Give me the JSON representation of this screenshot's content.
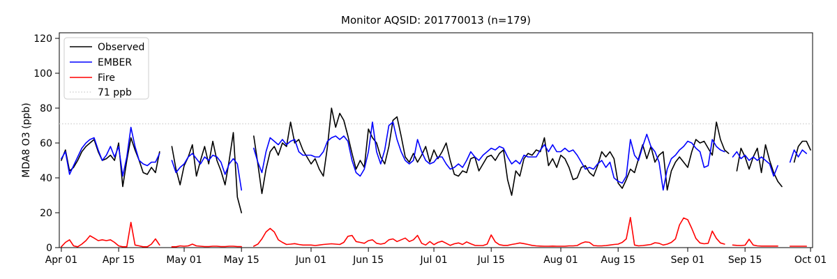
{
  "title": "Monitor AQSID: 201770013 (n=179)",
  "axes": {
    "ylabel": "MDA8 O3 (ppb)",
    "y_ticks": [
      0,
      20,
      40,
      60,
      80,
      100,
      120
    ],
    "ylim": [
      0,
      123.2
    ],
    "x_range_days": 184,
    "x_ticks": [
      {
        "label": "Apr 01",
        "day": 0
      },
      {
        "label": "Apr 15",
        "day": 14
      },
      {
        "label": "May 01",
        "day": 30
      },
      {
        "label": "May 15",
        "day": 44
      },
      {
        "label": "Jun 01",
        "day": 61
      },
      {
        "label": "Jun 15",
        "day": 75
      },
      {
        "label": "Jul 01",
        "day": 91
      },
      {
        "label": "Jul 15",
        "day": 105
      },
      {
        "label": "Aug 01",
        "day": 122
      },
      {
        "label": "Aug 15",
        "day": 136
      },
      {
        "label": "Sep 01",
        "day": 153
      },
      {
        "label": "Sep 15",
        "day": 167
      },
      {
        "label": "Oct 01",
        "day": 183
      }
    ]
  },
  "threshold_ppb": 71,
  "legend": {
    "items": [
      {
        "key": "observed",
        "label": "Observed",
        "color": "#000000",
        "style": "solid"
      },
      {
        "key": "ember",
        "label": "EMBER",
        "color": "#0000ff",
        "style": "solid"
      },
      {
        "key": "fire",
        "label": "Fire",
        "color": "#ff0000",
        "style": "solid"
      },
      {
        "key": "threshold",
        "label": "71 ppb",
        "color": "#d3d3d3",
        "style": "dotted"
      }
    ]
  },
  "chart_data": {
    "type": "line",
    "title": "Monitor AQSID: 201770013 (n=179)",
    "xlabel": "",
    "ylabel": "MDA8 O3 (ppb)",
    "x_unit": "day index from Apr 01 (null = missing day)",
    "x_start_date": "Apr 01",
    "x_end_date": "Sep 30",
    "grid": false,
    "legend_position": "upper left",
    "threshold_line": {
      "value": 71,
      "label": "71 ppb",
      "color": "#d3d3d3",
      "style": "dotted"
    },
    "series": [
      {
        "key": "observed",
        "name": "Observed",
        "color": "#000000",
        "values": [
          50,
          56,
          44,
          46,
          50,
          55,
          58,
          60,
          62,
          55,
          50,
          51,
          53,
          50,
          60,
          35,
          50,
          63,
          56,
          50,
          43,
          42,
          46,
          43,
          55,
          null,
          null,
          58,
          45,
          36,
          47,
          52,
          59,
          41,
          50,
          58,
          48,
          61,
          50,
          44,
          36,
          50,
          66,
          29,
          20,
          null,
          null,
          64,
          48,
          31,
          45,
          55,
          58,
          53,
          60,
          58,
          72,
          60,
          62,
          56,
          52,
          48,
          51,
          45,
          41,
          58,
          80,
          69,
          77,
          73,
          64,
          54,
          45,
          50,
          46,
          68,
          63,
          60,
          52,
          48,
          58,
          73,
          75,
          64,
          52,
          49,
          54,
          49,
          53,
          58,
          49,
          56,
          51,
          55,
          60,
          50,
          42,
          41,
          44,
          43,
          51,
          52,
          44,
          48,
          52,
          53,
          50,
          54,
          56,
          39,
          30,
          44,
          41,
          51,
          54,
          53,
          56,
          55,
          63,
          47,
          51,
          46,
          53,
          51,
          46,
          39,
          40,
          46,
          47,
          43,
          41,
          47,
          55,
          52,
          55,
          51,
          37,
          34,
          39,
          45,
          43,
          51,
          59,
          51,
          58,
          49,
          53,
          55,
          33,
          44,
          49,
          52,
          49,
          46,
          55,
          62,
          60,
          61,
          57,
          53,
          72,
          62,
          56,
          54,
          null,
          44,
          57,
          52,
          45,
          52,
          57,
          43,
          59,
          50,
          43,
          38,
          35,
          null,
          null,
          49,
          58,
          61,
          61,
          56
        ]
      },
      {
        "key": "ember",
        "name": "EMBER",
        "color": "#0000ff",
        "values": [
          51,
          55,
          42,
          47,
          52,
          57,
          60,
          62,
          63,
          56,
          50,
          53,
          58,
          52,
          58,
          41,
          52,
          69,
          58,
          50,
          48,
          47,
          49,
          49,
          54,
          null,
          null,
          50,
          43,
          46,
          48,
          52,
          54,
          51,
          48,
          52,
          50,
          53,
          52,
          49,
          42,
          48,
          51,
          48,
          33,
          null,
          null,
          57,
          49,
          43,
          55,
          63,
          61,
          59,
          62,
          59,
          61,
          62,
          55,
          53,
          53,
          53,
          52,
          52,
          55,
          61,
          63,
          64,
          62,
          64,
          61,
          50,
          43,
          41,
          45,
          55,
          72,
          55,
          48,
          56,
          70,
          72,
          62,
          55,
          50,
          48,
          50,
          62,
          55,
          50,
          48,
          49,
          52,
          52,
          48,
          45,
          46,
          48,
          46,
          50,
          55,
          52,
          50,
          53,
          55,
          57,
          56,
          58,
          57,
          52,
          48,
          50,
          48,
          53,
          52,
          52,
          52,
          56,
          59,
          55,
          59,
          55,
          55,
          57,
          55,
          56,
          53,
          49,
          45,
          46,
          45,
          48,
          50,
          46,
          49,
          40,
          38,
          37,
          41,
          62,
          53,
          50,
          58,
          65,
          58,
          55,
          49,
          33,
          45,
          51,
          53,
          56,
          58,
          61,
          60,
          57,
          55,
          46,
          47,
          62,
          58,
          56,
          55,
          null,
          52,
          55,
          51,
          53,
          50,
          52,
          50,
          52,
          50,
          48,
          41,
          47,
          null,
          null,
          49,
          56,
          52,
          56,
          54
        ]
      },
      {
        "key": "fire",
        "name": "Fire",
        "color": "#ff0000",
        "values": [
          0.5,
          3,
          4.5,
          1,
          0.5,
          2,
          4,
          6.8,
          5.5,
          4,
          4.5,
          4,
          4.5,
          3,
          1,
          0.5,
          0.5,
          14.5,
          1.5,
          1,
          0.5,
          0.5,
          2,
          5,
          1.5,
          null,
          null,
          0.5,
          0.5,
          1,
          0.8,
          1,
          2,
          1,
          0.8,
          0.6,
          0.6,
          0.8,
          0.8,
          0.6,
          0.6,
          0.8,
          0.8,
          0.6,
          0.6,
          null,
          null,
          0.8,
          2,
          5,
          9,
          11,
          9,
          4.5,
          3,
          1.8,
          2,
          2.3,
          1.8,
          1.5,
          1.5,
          1.5,
          1.2,
          1.5,
          1.8,
          2,
          2.2,
          2,
          1.8,
          3,
          6.5,
          7,
          3.5,
          3,
          2.5,
          4,
          4.5,
          2.5,
          2,
          2.5,
          4.5,
          5,
          3.5,
          4.5,
          5.5,
          3.5,
          4.5,
          7,
          2.5,
          1.5,
          3.5,
          1.7,
          3,
          3.7,
          2.5,
          1.3,
          2.2,
          2.7,
          1.8,
          3.3,
          2.2,
          1.3,
          1.2,
          1.2,
          2,
          7.3,
          3.3,
          1.7,
          1.3,
          1.3,
          1.8,
          2.2,
          2.7,
          2.3,
          1.8,
          1.3,
          1,
          0.9,
          0.8,
          0.8,
          0.9,
          0.8,
          0.8,
          0.8,
          1,
          1,
          1.2,
          2.5,
          3.3,
          3,
          1.2,
          1,
          1,
          1.2,
          1.5,
          1.8,
          2,
          3,
          5,
          17.3,
          1.5,
          1,
          1.2,
          1.5,
          1.8,
          2.8,
          2.5,
          1.5,
          2,
          3,
          5,
          13,
          17,
          16,
          11,
          5.3,
          2.7,
          2.2,
          2.5,
          9.5,
          5.3,
          2.7,
          2,
          null,
          1.5,
          1.3,
          1.2,
          1.4,
          4.8,
          1.5,
          1,
          0.9,
          0.9,
          0.9,
          0.9,
          0.9,
          null,
          null,
          0.8,
          0.8,
          0.8,
          0.8,
          0.8
        ]
      }
    ]
  }
}
